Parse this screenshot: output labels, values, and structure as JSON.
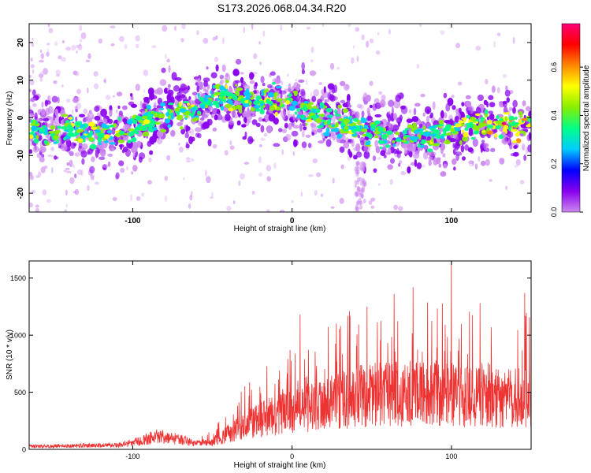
{
  "title": "S173.2026.068.04.34.R20",
  "colors": {
    "snr_line": "#ee3333",
    "colormap": [
      "#cc88ee",
      "#8800ee",
      "#0000ff",
      "#00ccff",
      "#00ff88",
      "#88ee00",
      "#ffff00",
      "#ff8800",
      "#ff0000",
      "#ff0077"
    ]
  },
  "chart_data": [
    {
      "type": "heatmap",
      "title": "",
      "xlabel": "Height of straight line (km)",
      "ylabel": "Frequency (Hz)",
      "xlim": [
        -165,
        150
      ],
      "ylim": [
        -25,
        25
      ],
      "xticks": [
        -100,
        0,
        100
      ],
      "xtick_labels": [
        "-100",
        "0",
        "100"
      ],
      "yticks": [
        -20,
        -10,
        0,
        10,
        20
      ],
      "ytick_labels": [
        "-20",
        "-10",
        "0",
        "10",
        "20"
      ],
      "colorbar": {
        "label": "Normalized spectral amplitude",
        "range": [
          0.0,
          0.78
        ],
        "ticks": [
          0.0,
          0.2,
          0.4,
          0.6
        ],
        "tick_labels": [
          "0.0",
          "0.2",
          "0.4",
          "0.6"
        ]
      },
      "ridge_center_hz": {
        "x": [
          -165,
          -140,
          -120,
          -100,
          -80,
          -60,
          -45,
          -30,
          -10,
          10,
          30,
          50,
          70,
          90,
          100,
          110,
          130,
          150
        ],
        "y": [
          -3,
          -3.5,
          -4.5,
          -3,
          1,
          3,
          6,
          4,
          4,
          2,
          -1,
          -4,
          -5,
          -5,
          -4,
          -2,
          -2,
          -2
        ]
      },
      "peak": {
        "x": 133,
        "y": -1.5,
        "value": 0.78
      }
    },
    {
      "type": "line",
      "title": "",
      "xlabel": "Height of straight line (km)",
      "ylabel": "SNR (10 * v/v)",
      "xlim": [
        -165,
        150
      ],
      "ylim": [
        0,
        1650
      ],
      "xticks": [
        -100,
        0,
        100
      ],
      "xtick_labels": [
        "-100",
        "0",
        "100"
      ],
      "yticks": [
        0,
        500,
        1000,
        1500
      ],
      "ytick_labels": [
        "0",
        "500",
        "1000",
        "1500"
      ],
      "envelope": {
        "x": [
          -165,
          -140,
          -110,
          -95,
          -85,
          -75,
          -60,
          -50,
          -40,
          -30,
          -20,
          -10,
          0,
          10,
          20,
          30,
          40,
          50,
          60,
          70,
          80,
          90,
          100,
          110,
          120,
          130,
          140,
          150
        ],
        "y": [
          30,
          35,
          40,
          80,
          130,
          110,
          60,
          70,
          160,
          240,
          300,
          350,
          380,
          420,
          460,
          500,
          530,
          560,
          560,
          570,
          560,
          570,
          560,
          540,
          520,
          520,
          520,
          540
        ]
      },
      "spikes": [
        {
          "x": 5,
          "y": 1180
        },
        {
          "x": 36,
          "y": 1210
        },
        {
          "x": 47,
          "y": 1250
        },
        {
          "x": 64,
          "y": 1360
        },
        {
          "x": 76,
          "y": 1420
        },
        {
          "x": 100,
          "y": 1650
        },
        {
          "x": 118,
          "y": 1280
        },
        {
          "x": 146,
          "y": 1370
        }
      ]
    }
  ]
}
